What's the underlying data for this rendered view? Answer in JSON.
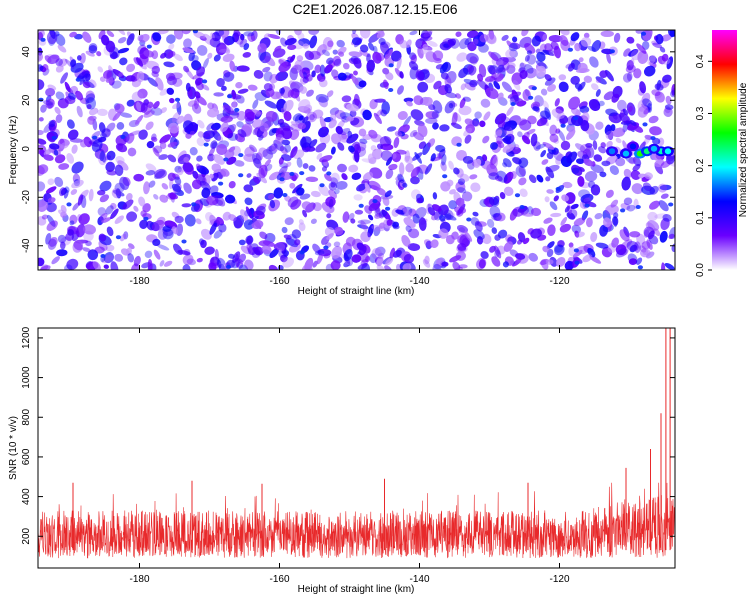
{
  "title": "C2E1.2026.087.12.15.E06",
  "colors": {
    "colormap": [
      "#ffffff",
      "#6a00ff",
      "#0000ff",
      "#00ffff",
      "#00ff00",
      "#ffff00",
      "#ff0000",
      "#ff00ff"
    ],
    "snr_line": "#e8292b"
  },
  "chart_data": [
    {
      "type": "heatmap",
      "name": "spectrogram",
      "xlabel": "Height of straight line (km)",
      "ylabel": "Frequency (Hz)",
      "xlim": [
        -194.5,
        -103.5
      ],
      "ylim": [
        -50,
        49
      ],
      "xticks": [
        -180,
        -160,
        -140,
        -120
      ],
      "yticks": [
        -40,
        -20,
        0,
        20,
        40
      ],
      "colorbar": {
        "label": "Normalized spectral amplitude",
        "range": [
          0,
          0.46
        ],
        "ticks": [
          0.0,
          0.1,
          0.2,
          0.3,
          0.4
        ]
      },
      "background_amplitude": [
        0.0,
        0.06
      ],
      "hotspots": [
        {
          "x": -108.5,
          "y": -2,
          "value": 0.3
        },
        {
          "x": -107.5,
          "y": -1,
          "value": 0.26
        },
        {
          "x": -105.5,
          "y": -1,
          "value": 0.24
        },
        {
          "x": -104.5,
          "y": -1,
          "value": 0.22
        },
        {
          "x": -110.5,
          "y": -2,
          "value": 0.2
        },
        {
          "x": -112.5,
          "y": -1,
          "value": 0.18
        },
        {
          "x": -106.5,
          "y": 0,
          "value": 0.2
        },
        {
          "x": -109.5,
          "y": 1,
          "value": 0.15
        }
      ],
      "grid": false
    },
    {
      "type": "line",
      "name": "snr",
      "xlabel": "Height of straight line (km)",
      "ylabel": "SNR (10 * v/v)",
      "xlim": [
        -194.5,
        -103.5
      ],
      "ylim": [
        40,
        1250
      ],
      "xticks": [
        -180,
        -160,
        -140,
        -120
      ],
      "yticks": [
        200,
        400,
        600,
        800,
        1000,
        1200
      ],
      "baseline_band": [
        90,
        330
      ],
      "peaks": [
        {
          "x": -189.5,
          "y": 470
        },
        {
          "x": -172.5,
          "y": 480
        },
        {
          "x": -162.5,
          "y": 465
        },
        {
          "x": -145.0,
          "y": 490
        },
        {
          "x": -124.5,
          "y": 470
        },
        {
          "x": -110.5,
          "y": 545
        },
        {
          "x": -107.0,
          "y": 640
        },
        {
          "x": -105.5,
          "y": 820
        },
        {
          "x": -104.8,
          "y": 1250
        },
        {
          "x": -104.2,
          "y": 1250
        }
      ],
      "grid": false
    }
  ]
}
